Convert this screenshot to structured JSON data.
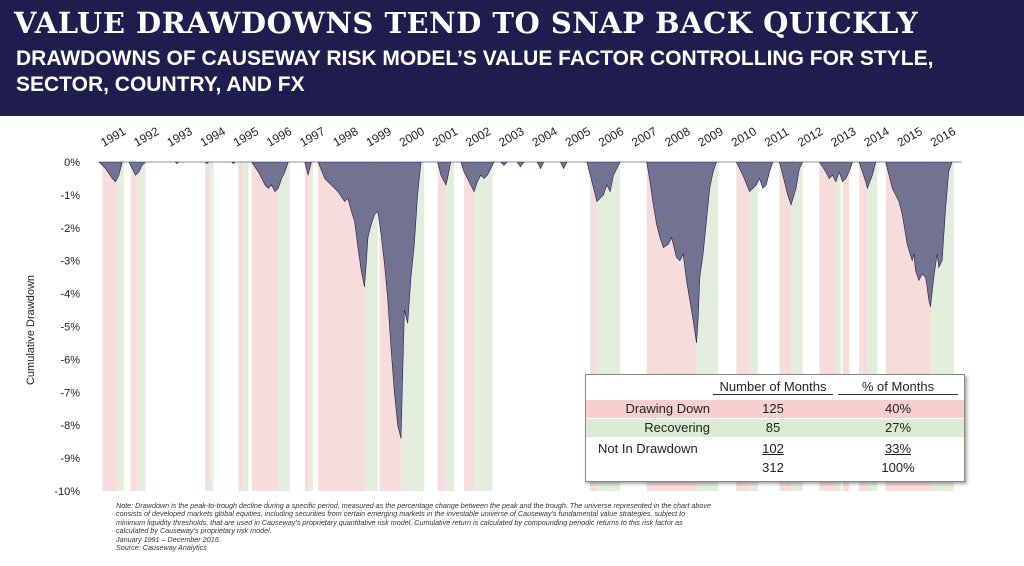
{
  "header": {
    "title": "VALUE DRAWDOWNS TEND TO SNAP BACK QUICKLY",
    "subtitle": "DRAWDOWNS OF CAUSEWAY RISK MODEL’S VALUE FACTOR CONTROLLING FOR STYLE, SECTOR, COUNTRY, AND FX"
  },
  "colors": {
    "banner": "#1f1d4e",
    "area": "#6a6c8c",
    "drawing_down_band": "#f7dcdc",
    "recovering_band": "#e2eedb"
  },
  "chart_data": {
    "type": "area",
    "ylabel": "Cumulative Drawdown",
    "ylim": [
      -10,
      0
    ],
    "yticks": [
      "0%",
      "-1%",
      "-2%",
      "-3%",
      "-4%",
      "-5%",
      "-6%",
      "-7%",
      "-8%",
      "-9%",
      "-10%"
    ],
    "x_tick_labels": [
      "1991",
      "1992",
      "1993",
      "1994",
      "1995",
      "1996",
      "1997",
      "1998",
      "1999",
      "2000",
      "2001",
      "2002",
      "2003",
      "2004",
      "2005",
      "2006",
      "2007",
      "2008",
      "2009",
      "2010",
      "2011",
      "2012",
      "2013",
      "2014",
      "2015",
      "2016"
    ],
    "xlim": [
      1991.0,
      2017.0
    ],
    "x_label_position": "top, rotated",
    "grid": false,
    "series": [
      {
        "points": [
          [
            1991.0,
            0
          ],
          [
            1991.2,
            -0.2
          ],
          [
            1991.4,
            -0.5
          ],
          [
            1991.5,
            -0.6
          ],
          [
            1991.6,
            -0.4
          ],
          [
            1991.7,
            0
          ],
          [
            1991.9,
            0
          ],
          [
            1992.0,
            -0.2
          ],
          [
            1992.1,
            -0.4
          ],
          [
            1992.2,
            -0.3
          ],
          [
            1992.3,
            -0.1
          ],
          [
            1992.4,
            0
          ],
          [
            1993.3,
            0
          ],
          [
            1993.35,
            -0.05
          ],
          [
            1993.4,
            0
          ],
          [
            1994.2,
            0
          ],
          [
            1994.25,
            -0.05
          ],
          [
            1994.3,
            0
          ],
          [
            1995.0,
            0
          ],
          [
            1995.05,
            -0.05
          ],
          [
            1995.1,
            0
          ],
          [
            1995.6,
            0
          ],
          [
            1995.8,
            -0.3
          ],
          [
            1996.0,
            -0.7
          ],
          [
            1996.1,
            -0.8
          ],
          [
            1996.2,
            -0.7
          ],
          [
            1996.3,
            -0.9
          ],
          [
            1996.4,
            -0.8
          ],
          [
            1996.5,
            -0.5
          ],
          [
            1996.6,
            -0.3
          ],
          [
            1996.7,
            0
          ],
          [
            1997.2,
            0
          ],
          [
            1997.3,
            -0.4
          ],
          [
            1997.4,
            0
          ],
          [
            1997.6,
            0
          ],
          [
            1997.8,
            -0.5
          ],
          [
            1998.0,
            -0.7
          ],
          [
            1998.2,
            -0.9
          ],
          [
            1998.4,
            -1.2
          ],
          [
            1998.5,
            -1.1
          ],
          [
            1998.6,
            -1.5
          ],
          [
            1998.7,
            -1.8
          ],
          [
            1998.8,
            -2.6
          ],
          [
            1998.9,
            -3.3
          ],
          [
            1999.0,
            -3.8
          ],
          [
            1999.05,
            -3.1
          ],
          [
            1999.1,
            -2.3
          ],
          [
            1999.2,
            -1.9
          ],
          [
            1999.3,
            -1.6
          ],
          [
            1999.4,
            -1.5
          ],
          [
            1999.5,
            -2.2
          ],
          [
            1999.6,
            -3.1
          ],
          [
            1999.7,
            -4.2
          ],
          [
            1999.8,
            -5.7
          ],
          [
            1999.9,
            -7.0
          ],
          [
            2000.0,
            -8.0
          ],
          [
            2000.1,
            -8.4
          ],
          [
            2000.15,
            -6.4
          ],
          [
            2000.2,
            -4.5
          ],
          [
            2000.3,
            -4.9
          ],
          [
            2000.4,
            -3.5
          ],
          [
            2000.5,
            -2.5
          ],
          [
            2000.6,
            -1.0
          ],
          [
            2000.7,
            0
          ],
          [
            2001.2,
            0
          ],
          [
            2001.3,
            -0.4
          ],
          [
            2001.45,
            -0.7
          ],
          [
            2001.5,
            -0.5
          ],
          [
            2001.6,
            0
          ],
          [
            2001.9,
            0
          ],
          [
            2002.0,
            -0.3
          ],
          [
            2002.15,
            -0.6
          ],
          [
            2002.3,
            -0.9
          ],
          [
            2002.4,
            -0.6
          ],
          [
            2002.5,
            -0.4
          ],
          [
            2002.6,
            -0.5
          ],
          [
            2002.7,
            -0.4
          ],
          [
            2002.8,
            -0.2
          ],
          [
            2002.9,
            0
          ],
          [
            2003.1,
            0
          ],
          [
            2003.2,
            -0.1
          ],
          [
            2003.3,
            0
          ],
          [
            2003.6,
            0
          ],
          [
            2003.7,
            -0.15
          ],
          [
            2003.8,
            0
          ],
          [
            2004.2,
            0
          ],
          [
            2004.3,
            -0.2
          ],
          [
            2004.4,
            0
          ],
          [
            2004.9,
            0
          ],
          [
            2005.0,
            -0.2
          ],
          [
            2005.1,
            0
          ],
          [
            2005.7,
            0
          ],
          [
            2005.8,
            -0.4
          ],
          [
            2005.9,
            -0.8
          ],
          [
            2006.0,
            -1.2
          ],
          [
            2006.2,
            -1.0
          ],
          [
            2006.3,
            -0.7
          ],
          [
            2006.4,
            -0.9
          ],
          [
            2006.5,
            -0.4
          ],
          [
            2006.6,
            -0.2
          ],
          [
            2006.7,
            0
          ],
          [
            2007.5,
            0
          ],
          [
            2007.6,
            -0.6
          ],
          [
            2007.7,
            -1.3
          ],
          [
            2007.8,
            -1.9
          ],
          [
            2007.9,
            -2.3
          ],
          [
            2008.0,
            -2.6
          ],
          [
            2008.15,
            -2.5
          ],
          [
            2008.25,
            -2.3
          ],
          [
            2008.4,
            -2.9
          ],
          [
            2008.5,
            -3.0
          ],
          [
            2008.6,
            -2.8
          ],
          [
            2008.7,
            -3.6
          ],
          [
            2008.8,
            -4.2
          ],
          [
            2008.9,
            -4.8
          ],
          [
            2009.0,
            -5.5
          ],
          [
            2009.05,
            -4.8
          ],
          [
            2009.1,
            -3.5
          ],
          [
            2009.2,
            -2.8
          ],
          [
            2009.3,
            -1.8
          ],
          [
            2009.4,
            -0.8
          ],
          [
            2009.5,
            -0.3
          ],
          [
            2009.6,
            0
          ],
          [
            2010.2,
            0
          ],
          [
            2010.4,
            -0.4
          ],
          [
            2010.6,
            -0.9
          ],
          [
            2010.8,
            -0.7
          ],
          [
            2010.9,
            -0.5
          ],
          [
            2011.0,
            -0.8
          ],
          [
            2011.1,
            -0.7
          ],
          [
            2011.2,
            -0.3
          ],
          [
            2011.3,
            0
          ],
          [
            2011.5,
            0
          ],
          [
            2011.6,
            -0.4
          ],
          [
            2011.75,
            -1.0
          ],
          [
            2011.85,
            -1.3
          ],
          [
            2012.0,
            -0.8
          ],
          [
            2012.1,
            -0.2
          ],
          [
            2012.2,
            0
          ],
          [
            2012.7,
            0
          ],
          [
            2012.9,
            -0.3
          ],
          [
            2013.0,
            -0.5
          ],
          [
            2013.1,
            -0.4
          ],
          [
            2013.2,
            -0.6
          ],
          [
            2013.3,
            -0.3
          ],
          [
            2013.4,
            -0.6
          ],
          [
            2013.5,
            -0.5
          ],
          [
            2013.6,
            -0.3
          ],
          [
            2013.7,
            0
          ],
          [
            2013.9,
            0
          ],
          [
            2014.0,
            -0.3
          ],
          [
            2014.1,
            -0.6
          ],
          [
            2014.15,
            -0.8
          ],
          [
            2014.3,
            -0.4
          ],
          [
            2014.4,
            0
          ],
          [
            2014.7,
            0
          ],
          [
            2014.8,
            -0.4
          ],
          [
            2014.9,
            -0.8
          ],
          [
            2015.0,
            -1.0
          ],
          [
            2015.1,
            -1.2
          ],
          [
            2015.2,
            -1.6
          ],
          [
            2015.35,
            -2.5
          ],
          [
            2015.5,
            -3.0
          ],
          [
            2015.55,
            -2.8
          ],
          [
            2015.6,
            -3.3
          ],
          [
            2015.7,
            -3.6
          ],
          [
            2015.8,
            -3.4
          ],
          [
            2015.9,
            -3.5
          ],
          [
            2015.95,
            -3.8
          ],
          [
            2016.0,
            -4.2
          ],
          [
            2016.05,
            -4.4
          ],
          [
            2016.15,
            -3.5
          ],
          [
            2016.25,
            -2.8
          ],
          [
            2016.3,
            -3.2
          ],
          [
            2016.4,
            -3.0
          ],
          [
            2016.5,
            -1.5
          ],
          [
            2016.6,
            -0.3
          ],
          [
            2016.7,
            0
          ],
          [
            2017.0,
            0
          ]
        ]
      }
    ],
    "drawing_down_periods": [
      [
        1991.1,
        1991.55
      ],
      [
        1991.95,
        1992.15
      ],
      [
        1994.2,
        1994.35
      ],
      [
        1995.2,
        1995.35
      ],
      [
        1995.6,
        1996.4
      ],
      [
        1997.2,
        1997.35
      ],
      [
        1997.6,
        1999.0
      ],
      [
        1999.45,
        2000.1
      ],
      [
        2001.2,
        2001.45
      ],
      [
        2002.0,
        2002.3
      ],
      [
        2005.8,
        2006.0
      ],
      [
        2007.5,
        2009.0
      ],
      [
        2010.2,
        2010.6
      ],
      [
        2011.5,
        2011.85
      ],
      [
        2012.7,
        2013.2
      ],
      [
        2013.4,
        2013.6
      ],
      [
        2013.9,
        2014.15
      ],
      [
        2014.7,
        2016.05
      ]
    ],
    "recovering_periods": [
      [
        1991.55,
        1991.75
      ],
      [
        1992.15,
        1992.4
      ],
      [
        1994.35,
        1994.45
      ],
      [
        1995.35,
        1995.5
      ],
      [
        1996.4,
        1996.75
      ],
      [
        1997.35,
        1997.45
      ],
      [
        1999.0,
        1999.4
      ],
      [
        2000.1,
        2000.8
      ],
      [
        2001.45,
        2001.7
      ],
      [
        2002.3,
        2002.85
      ],
      [
        2006.0,
        2006.7
      ],
      [
        2009.0,
        2009.65
      ],
      [
        2010.6,
        2010.85
      ],
      [
        2011.85,
        2012.2
      ],
      [
        2013.2,
        2013.35
      ],
      [
        2014.15,
        2014.45
      ],
      [
        2016.05,
        2016.75
      ]
    ]
  },
  "table": {
    "headers": [
      "",
      "Number of Months",
      "% of Months"
    ],
    "rows": [
      {
        "label": "Drawing Down",
        "months": "125",
        "pct": "40%"
      },
      {
        "label": "Recovering",
        "months": "85",
        "pct": "27%"
      },
      {
        "label": "Not In Drawdown",
        "months": "102",
        "pct": "33%"
      },
      {
        "label": "",
        "months": "312",
        "pct": "100%"
      }
    ]
  },
  "note": {
    "lines": [
      "Note: Drawdown is the peak-to-trough decline during a specific period, measured as the percentage change between the peak and the trough. The universe represented in the chart above consists of developed markets global equities, including securities from certain emerging markets in the investable universe of Causeway’s fundamental value strategies, subject to minimum liquidity thresholds, that are used in Causeway’s proprietary quantitative risk model. Cumulative return is calculated by compounding periodic returns to this risk factor as calculated by Causeway’s proprietary risk model.",
      "January 1991 – December 2016.",
      "Source: Causeway Analytics"
    ]
  }
}
